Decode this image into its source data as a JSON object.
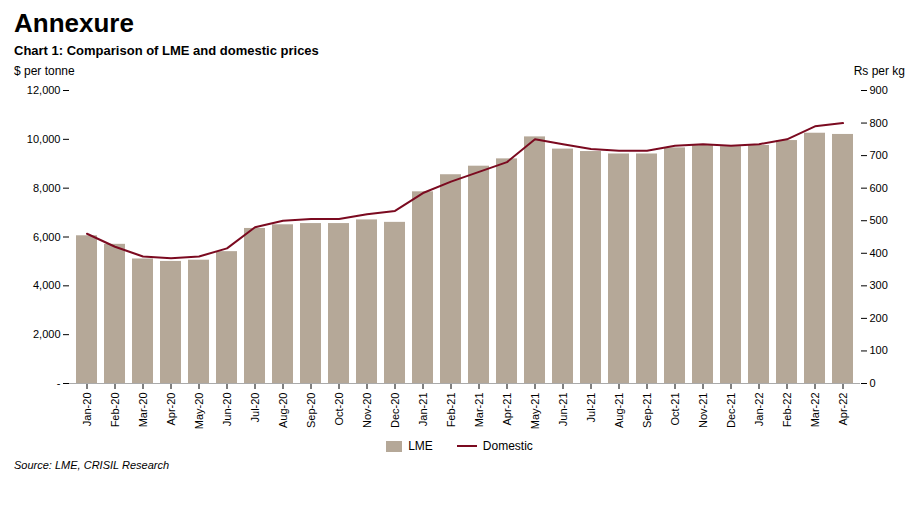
{
  "chart_data": {
    "type": "bar",
    "title": "Annexure",
    "subtitle": "Chart 1: Comparison of LME and domestic prices",
    "ylabel": "$ per tonne",
    "y2label": "Rs per kg",
    "annotations": [
      "Source: LME, CRISIL Research"
    ],
    "categories": [
      "Jan-20",
      "Feb-20",
      "Mar-20",
      "Apr-20",
      "May-20",
      "Jun-20",
      "Jul-20",
      "Aug-20",
      "Sep-20",
      "Oct-20",
      "Nov-20",
      "Dec-20",
      "Jan-21",
      "Feb-21",
      "Mar-21",
      "Apr-21",
      "May-21",
      "Jun-21",
      "Jul-21",
      "Aug-21",
      "Sep-21",
      "Oct-21",
      "Nov-21",
      "Dec-21",
      "Jan-22",
      "Feb-22",
      "Mar-22",
      "Apr-22"
    ],
    "series": [
      {
        "name": "LME",
        "type": "bar",
        "color": "#b5a898",
        "values": [
          6050,
          5700,
          5100,
          5000,
          5050,
          5400,
          6350,
          6500,
          6550,
          6550,
          6700,
          6600,
          7850,
          8550,
          8900,
          9200,
          10100,
          9600,
          9500,
          9400,
          9400,
          9650,
          9750,
          9700,
          9750,
          9950,
          10250,
          10200
        ]
      },
      {
        "name": "Domestic",
        "type": "line",
        "axis": "y2",
        "color": "#7b0a20",
        "values": [
          460,
          420,
          390,
          385,
          390,
          415,
          480,
          500,
          505,
          505,
          520,
          530,
          585,
          620,
          650,
          680,
          750,
          735,
          720,
          715,
          715,
          730,
          735,
          730,
          735,
          750,
          790,
          800
        ]
      }
    ],
    "ylim": [
      0,
      12000
    ],
    "yticks": [
      {
        "value": 0,
        "label": "-"
      },
      {
        "value": 2000,
        "label": "2,000"
      },
      {
        "value": 4000,
        "label": "4,000"
      },
      {
        "value": 6000,
        "label": "6,000"
      },
      {
        "value": 8000,
        "label": "8,000"
      },
      {
        "value": 10000,
        "label": "10,000"
      },
      {
        "value": 12000,
        "label": "12,000"
      }
    ],
    "y2lim": [
      0,
      900
    ],
    "y2ticks": [
      0,
      100,
      200,
      300,
      400,
      500,
      600,
      700,
      800,
      900
    ],
    "grid": false,
    "legend": "bottom"
  }
}
